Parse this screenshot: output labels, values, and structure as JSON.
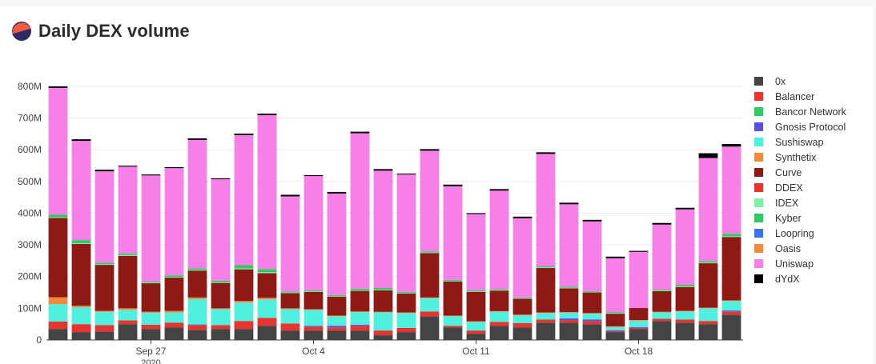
{
  "page": {
    "title": "Daily DEX volume"
  },
  "colors": {
    "logo_top": "#ef5b3e",
    "logo_bottom": "#2f2a66"
  },
  "chart_data": {
    "type": "bar",
    "stacked": true,
    "title": "Daily DEX volume",
    "xlabel": "",
    "ylabel": "",
    "ylim": [
      0,
      820000000
    ],
    "y_ticks": [
      0,
      100000000,
      200000000,
      300000000,
      400000000,
      500000000,
      600000000,
      700000000,
      800000000
    ],
    "y_tick_labels": [
      "0",
      "100M",
      "200M",
      "300M",
      "400M",
      "500M",
      "600M",
      "700M",
      "800M"
    ],
    "x_tick_labels": [
      {
        "date": "2020-09-27",
        "label": "Sep 27",
        "sublabel": "2020"
      },
      {
        "date": "2020-10-04",
        "label": "Oct 4",
        "sublabel": ""
      },
      {
        "date": "2020-10-11",
        "label": "Oct 11",
        "sublabel": ""
      },
      {
        "date": "2020-10-18",
        "label": "Oct 18",
        "sublabel": ""
      }
    ],
    "categories": [
      "2020-09-23",
      "2020-09-24",
      "2020-09-25",
      "2020-09-26",
      "2020-09-27",
      "2020-09-28",
      "2020-09-29",
      "2020-09-30",
      "2020-10-01",
      "2020-10-02",
      "2020-10-03",
      "2020-10-04",
      "2020-10-05",
      "2020-10-06",
      "2020-10-07",
      "2020-10-08",
      "2020-10-09",
      "2020-10-10",
      "2020-10-11",
      "2020-10-12",
      "2020-10-13",
      "2020-10-14",
      "2020-10-15",
      "2020-10-16",
      "2020-10-17",
      "2020-10-18",
      "2020-10-19",
      "2020-10-20",
      "2020-10-21",
      "2020-10-22"
    ],
    "grid": true,
    "legend_position": "right",
    "series": [
      {
        "name": "0x",
        "color": "#444444",
        "values": [
          35,
          25,
          27,
          50,
          35,
          40,
          32,
          35,
          35,
          45,
          30,
          30,
          30,
          30,
          15,
          25,
          75,
          40,
          20,
          45,
          40,
          55,
          55,
          50,
          25,
          35,
          60,
          55,
          50,
          80
        ]
      },
      {
        "name": "Balancer",
        "color": "#e8332e",
        "values": [
          23,
          25,
          20,
          12,
          13,
          15,
          15,
          12,
          25,
          25,
          22,
          12,
          10,
          15,
          15,
          13,
          15,
          5,
          10,
          12,
          13,
          10,
          8,
          10,
          3,
          3,
          7,
          10,
          10,
          10
        ]
      },
      {
        "name": "Bancor Network",
        "color": "#32c964",
        "values": [
          0,
          0,
          0,
          0,
          0,
          0,
          0,
          0,
          0,
          0,
          0,
          0,
          0,
          0,
          0,
          0,
          0,
          0,
          0,
          0,
          0,
          0,
          0,
          0,
          0,
          0,
          0,
          0,
          0,
          0
        ]
      },
      {
        "name": "Gnosis Protocol",
        "color": "#5a50e0",
        "values": [
          0,
          0,
          0,
          0,
          0,
          0,
          2,
          0,
          0,
          0,
          0,
          3,
          5,
          3,
          0,
          0,
          0,
          0,
          0,
          0,
          0,
          0,
          5,
          5,
          3,
          3,
          0,
          0,
          0,
          3
        ]
      },
      {
        "name": "Sushiswap",
        "color": "#50f0e0",
        "values": [
          55,
          53,
          42,
          33,
          38,
          32,
          80,
          50,
          58,
          58,
          45,
          50,
          30,
          40,
          57,
          47,
          42,
          30,
          27,
          32,
          25,
          20,
          18,
          18,
          10,
          20,
          20,
          25,
          40,
          30
        ]
      },
      {
        "name": "Synthetix",
        "color": "#f28a3c",
        "values": [
          22,
          5,
          3,
          5,
          3,
          5,
          5,
          3,
          5,
          5,
          3,
          2,
          2,
          2,
          2,
          2,
          2,
          2,
          2,
          2,
          2,
          2,
          2,
          2,
          2,
          2,
          2,
          2,
          2,
          2
        ]
      },
      {
        "name": "Curve",
        "color": "#8e1a16",
        "values": [
          250,
          195,
          145,
          165,
          90,
          105,
          85,
          80,
          100,
          78,
          48,
          55,
          60,
          65,
          68,
          60,
          140,
          108,
          93,
          65,
          50,
          140,
          75,
          65,
          40,
          38,
          65,
          75,
          140,
          200
        ]
      },
      {
        "name": "DDEX",
        "color": "#e8332e",
        "values": [
          0,
          0,
          0,
          0,
          0,
          0,
          0,
          0,
          0,
          0,
          0,
          0,
          0,
          0,
          0,
          0,
          0,
          0,
          0,
          0,
          0,
          0,
          0,
          0,
          0,
          0,
          0,
          0,
          0,
          0
        ]
      },
      {
        "name": "IDEX",
        "color": "#80f0a8",
        "values": [
          2,
          2,
          2,
          2,
          2,
          2,
          2,
          2,
          3,
          3,
          2,
          2,
          2,
          2,
          2,
          2,
          2,
          2,
          2,
          2,
          2,
          2,
          2,
          2,
          2,
          0,
          2,
          2,
          2,
          2
        ]
      },
      {
        "name": "Kyber",
        "color": "#32c964",
        "values": [
          8,
          10,
          5,
          5,
          3,
          5,
          5,
          5,
          10,
          10,
          3,
          3,
          3,
          5,
          5,
          3,
          3,
          3,
          3,
          3,
          2,
          3,
          3,
          2,
          3,
          0,
          3,
          5,
          5,
          8
        ]
      },
      {
        "name": "Loopring",
        "color": "#3a72ee",
        "values": [
          0,
          0,
          0,
          0,
          0,
          0,
          0,
          0,
          0,
          0,
          0,
          0,
          0,
          0,
          0,
          0,
          0,
          0,
          0,
          0,
          0,
          0,
          0,
          0,
          0,
          0,
          0,
          0,
          0,
          0
        ]
      },
      {
        "name": "Oasis",
        "color": "#f28a3c",
        "values": [
          0,
          0,
          0,
          0,
          0,
          0,
          0,
          0,
          0,
          0,
          0,
          0,
          0,
          0,
          0,
          0,
          0,
          0,
          0,
          0,
          0,
          0,
          0,
          0,
          0,
          0,
          0,
          0,
          0,
          0
        ]
      },
      {
        "name": "Uniswap",
        "color": "#f77fe8",
        "values": [
          400,
          313,
          288,
          275,
          335,
          338,
          405,
          320,
          410,
          485,
          300,
          360,
          320,
          490,
          370,
          370,
          318,
          295,
          240,
          310,
          250,
          355,
          260,
          220,
          170,
          177,
          205,
          238,
          325,
          275
        ]
      },
      {
        "name": "dYdX",
        "color": "#000000",
        "values": [
          5,
          5,
          5,
          3,
          3,
          3,
          5,
          3,
          5,
          5,
          5,
          3,
          5,
          5,
          5,
          3,
          5,
          5,
          3,
          5,
          5,
          5,
          5,
          5,
          5,
          3,
          5,
          5,
          15,
          8
        ]
      }
    ],
    "value_unit": "M"
  }
}
